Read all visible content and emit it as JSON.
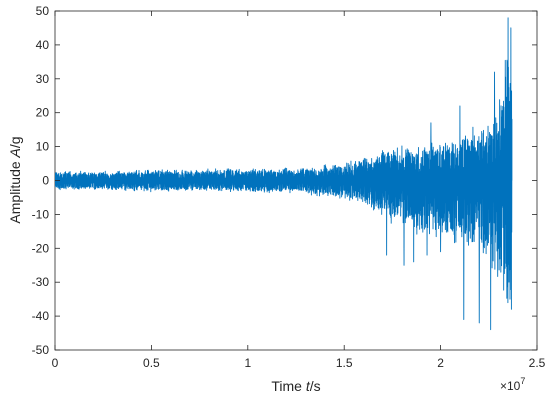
{
  "chart_data": {
    "type": "line",
    "title": "",
    "xlabel": {
      "prefix": "Time ",
      "var": "t",
      "suffix": "/s"
    },
    "ylabel": {
      "prefix": "Amplitude ",
      "var": "A",
      "suffix": "/g"
    },
    "x_multiplier": {
      "base": "×10",
      "exponent": "7"
    },
    "xlim": [
      0,
      2.5
    ],
    "ylim": [
      -50,
      50
    ],
    "xticks": [
      0,
      0.5,
      1,
      1.5,
      2,
      2.5
    ],
    "xtick_labels": [
      "0",
      "0.5",
      "1",
      "1.5",
      "2",
      "2.5"
    ],
    "yticks": [
      -50,
      -40,
      -30,
      -20,
      -10,
      0,
      10,
      20,
      30,
      40,
      50
    ],
    "ytick_labels": [
      "-50",
      "-40",
      "-30",
      "-20",
      "-10",
      "0",
      "10",
      "20",
      "30",
      "40",
      "50"
    ],
    "grid": false,
    "line_color": "#0072BD",
    "series": [
      {
        "x_end": 2.37,
        "envelope": {
          "x": [
            0,
            0.25,
            0.5,
            0.75,
            1.0,
            1.25,
            1.5,
            1.6,
            1.7,
            1.8,
            1.9,
            2.0,
            2.1,
            2.2,
            2.25,
            2.3,
            2.33,
            2.35,
            2.37
          ],
          "upper": [
            3,
            3,
            3.5,
            3.5,
            4,
            4,
            6,
            8,
            10,
            11,
            12,
            13,
            15,
            18,
            20,
            25,
            35,
            48,
            48
          ],
          "lower": [
            -3,
            -3,
            -3.5,
            -3.5,
            -4,
            -4,
            -6,
            -8,
            -12,
            -15,
            -18,
            -20,
            -22,
            -25,
            -28,
            -35,
            -42,
            -48,
            -48
          ]
        },
        "spikes": [
          {
            "x": 1.72,
            "y": -22
          },
          {
            "x": 1.81,
            "y": -25
          },
          {
            "x": 1.86,
            "y": -24
          },
          {
            "x": 1.93,
            "y": -22
          },
          {
            "x": 2.0,
            "y": -21
          },
          {
            "x": 2.12,
            "y": -41
          },
          {
            "x": 2.2,
            "y": -42
          },
          {
            "x": 2.26,
            "y": -44
          },
          {
            "x": 1.95,
            "y": 17
          },
          {
            "x": 2.1,
            "y": 22
          },
          {
            "x": 2.28,
            "y": 32
          },
          {
            "x": 2.35,
            "y": 48
          }
        ]
      }
    ]
  }
}
